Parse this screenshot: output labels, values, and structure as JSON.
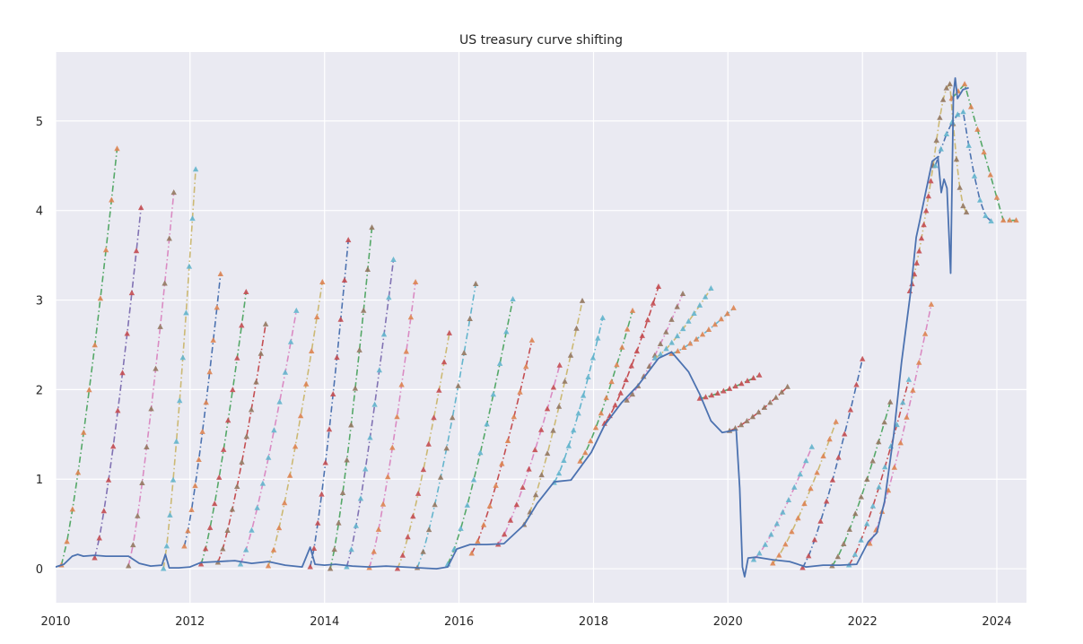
{
  "chart_data": {
    "type": "line",
    "title": "US treasury curve shifting",
    "xlabel": "",
    "ylabel": "",
    "x_axis": {
      "type": "date",
      "range": [
        "2010-01-01",
        "2024-06-10"
      ],
      "ticks": [
        "2010",
        "2012",
        "2014",
        "2016",
        "2018",
        "2020",
        "2022",
        "2024"
      ]
    },
    "y_axis": {
      "range": [
        -0.38,
        5.77
      ],
      "ticks": [
        0,
        1,
        2,
        3,
        4,
        5
      ]
    },
    "grid": true,
    "style": "seaborn-darkgrid",
    "short_rate_series": {
      "points": [
        [
          "2010-01-01",
          0.02
        ],
        [
          "2010-02-15",
          0.05
        ],
        [
          "2010-04-01",
          0.14
        ],
        [
          "2010-05-01",
          0.16
        ],
        [
          "2010-06-01",
          0.14
        ],
        [
          "2010-08-01",
          0.15
        ],
        [
          "2010-10-01",
          0.14
        ],
        [
          "2010-12-01",
          0.14
        ],
        [
          "2011-02-01",
          0.14
        ],
        [
          "2011-04-01",
          0.06
        ],
        [
          "2011-06-01",
          0.03
        ],
        [
          "2011-08-01",
          0.04
        ],
        [
          "2011-08-20",
          0.16
        ],
        [
          "2011-09-10",
          0.01
        ],
        [
          "2011-11-01",
          0.01
        ],
        [
          "2012-01-01",
          0.02
        ],
        [
          "2012-03-01",
          0.07
        ],
        [
          "2012-06-01",
          0.08
        ],
        [
          "2012-09-01",
          0.09
        ],
        [
          "2012-12-01",
          0.06
        ],
        [
          "2013-03-01",
          0.08
        ],
        [
          "2013-06-01",
          0.04
        ],
        [
          "2013-09-01",
          0.02
        ],
        [
          "2013-10-15",
          0.24
        ],
        [
          "2013-11-10",
          0.05
        ],
        [
          "2014-01-01",
          0.04
        ],
        [
          "2014-03-01",
          0.05
        ],
        [
          "2014-06-01",
          0.03
        ],
        [
          "2014-09-01",
          0.02
        ],
        [
          "2014-12-01",
          0.03
        ],
        [
          "2015-03-01",
          0.02
        ],
        [
          "2015-06-01",
          0.01
        ],
        [
          "2015-09-01",
          0.0
        ],
        [
          "2015-11-01",
          0.02
        ],
        [
          "2015-12-20",
          0.22
        ],
        [
          "2016-03-01",
          0.27
        ],
        [
          "2016-06-01",
          0.27
        ],
        [
          "2016-09-01",
          0.28
        ],
        [
          "2016-12-20",
          0.49
        ],
        [
          "2017-03-01",
          0.73
        ],
        [
          "2017-06-01",
          0.97
        ],
        [
          "2017-09-01",
          0.99
        ],
        [
          "2017-12-20",
          1.3
        ],
        [
          "2018-03-01",
          1.6
        ],
        [
          "2018-06-01",
          1.85
        ],
        [
          "2018-09-01",
          2.05
        ],
        [
          "2018-12-20",
          2.35
        ],
        [
          "2019-03-01",
          2.42
        ],
        [
          "2019-06-01",
          2.2
        ],
        [
          "2019-08-01",
          1.95
        ],
        [
          "2019-10-01",
          1.65
        ],
        [
          "2019-12-01",
          1.52
        ],
        [
          "2020-02-15",
          1.55
        ],
        [
          "2020-03-05",
          0.9
        ],
        [
          "2020-03-20",
          0.02
        ],
        [
          "2020-04-01",
          -0.09
        ],
        [
          "2020-04-20",
          0.12
        ],
        [
          "2020-06-01",
          0.13
        ],
        [
          "2020-09-01",
          0.1
        ],
        [
          "2020-12-01",
          0.08
        ],
        [
          "2021-03-01",
          0.02
        ],
        [
          "2021-06-01",
          0.04
        ],
        [
          "2021-09-01",
          0.04
        ],
        [
          "2021-12-01",
          0.05
        ],
        [
          "2022-02-01",
          0.3
        ],
        [
          "2022-03-20",
          0.4
        ],
        [
          "2022-05-01",
          0.75
        ],
        [
          "2022-06-20",
          1.5
        ],
        [
          "2022-08-01",
          2.3
        ],
        [
          "2022-09-20",
          3.1
        ],
        [
          "2022-10-20",
          3.7
        ],
        [
          "2022-11-10",
          3.9
        ],
        [
          "2022-12-10",
          4.2
        ],
        [
          "2023-01-15",
          4.55
        ],
        [
          "2023-02-15",
          4.6
        ],
        [
          "2023-03-05",
          4.2
        ],
        [
          "2023-03-20",
          4.35
        ],
        [
          "2023-04-05",
          4.25
        ],
        [
          "2023-04-25",
          3.3
        ],
        [
          "2023-05-10",
          5.3
        ],
        [
          "2023-05-20",
          5.48
        ],
        [
          "2023-06-01",
          5.25
        ],
        [
          "2023-07-01",
          5.35
        ],
        [
          "2023-08-01",
          5.37
        ]
      ]
    },
    "forward_curves": [
      {
        "start": "2010-02-01",
        "end": "2010-12-01",
        "y0": 0.04,
        "y1": 4.69
      },
      {
        "start": "2010-08-01",
        "end": "2011-04-10",
        "y0": 0.12,
        "y1": 4.03
      },
      {
        "start": "2011-02-01",
        "end": "2011-10-05",
        "y0": 0.03,
        "y1": 4.2
      },
      {
        "start": "2011-08-10",
        "end": "2012-02-01",
        "y0": 0.0,
        "y1": 4.46
      },
      {
        "start": "2011-12-01",
        "end": "2012-06-15",
        "y0": 0.25,
        "y1": 3.29
      },
      {
        "start": "2012-03-01",
        "end": "2012-11-01",
        "y0": 0.05,
        "y1": 3.09
      },
      {
        "start": "2012-06-01",
        "end": "2013-02-15",
        "y0": 0.07,
        "y1": 2.73
      },
      {
        "start": "2012-10-01",
        "end": "2013-08-01",
        "y0": 0.05,
        "y1": 2.88
      },
      {
        "start": "2013-03-01",
        "end": "2013-12-20",
        "y0": 0.03,
        "y1": 3.2
      },
      {
        "start": "2013-10-15",
        "end": "2014-05-10",
        "y0": 0.02,
        "y1": 3.67
      },
      {
        "start": "2014-02-01",
        "end": "2014-09-15",
        "y0": 0.0,
        "y1": 3.81
      },
      {
        "start": "2014-05-01",
        "end": "2015-01-10",
        "y0": 0.02,
        "y1": 3.45
      },
      {
        "start": "2014-09-01",
        "end": "2015-05-10",
        "y0": 0.01,
        "y1": 3.2
      },
      {
        "start": "2015-02-01",
        "end": "2015-11-10",
        "y0": 0.0,
        "y1": 2.63
      },
      {
        "start": "2015-05-20",
        "end": "2016-04-01",
        "y0": 0.01,
        "y1": 3.18
      },
      {
        "start": "2015-11-01",
        "end": "2016-10-20",
        "y0": 0.05,
        "y1": 3.01
      },
      {
        "start": "2016-03-10",
        "end": "2017-02-01",
        "y0": 0.17,
        "y1": 2.55
      },
      {
        "start": "2016-08-01",
        "end": "2017-07-01",
        "y0": 0.27,
        "y1": 2.27
      },
      {
        "start": "2016-12-20",
        "end": "2017-11-01",
        "y0": 0.49,
        "y1": 2.99
      },
      {
        "start": "2017-06-01",
        "end": "2018-02-20",
        "y0": 0.96,
        "y1": 2.8
      },
      {
        "start": "2017-10-20",
        "end": "2018-08-01",
        "y0": 1.2,
        "y1": 2.88
      },
      {
        "start": "2018-03-01",
        "end": "2018-12-20",
        "y0": 1.62,
        "y1": 3.15
      },
      {
        "start": "2018-07-01",
        "end": "2019-05-01",
        "y0": 1.88,
        "y1": 3.07
      },
      {
        "start": "2018-12-01",
        "end": "2019-10-01",
        "y0": 2.35,
        "y1": 3.13
      },
      {
        "start": "2019-03-01",
        "end": "2020-02-01",
        "y0": 2.4,
        "y1": 2.91
      },
      {
        "start": "2019-08-01",
        "end": "2020-06-20",
        "y0": 1.9,
        "y1": 2.16
      },
      {
        "start": "2020-01-10",
        "end": "2020-11-20",
        "y0": 1.54,
        "y1": 2.03
      },
      {
        "start": "2020-05-20",
        "end": "2021-04-01",
        "y0": 0.1,
        "y1": 1.36
      },
      {
        "start": "2020-09-01",
        "end": "2021-08-10",
        "y0": 0.06,
        "y1": 1.64
      },
      {
        "start": "2021-02-10",
        "end": "2022-01-01",
        "y0": 0.01,
        "y1": 2.34
      },
      {
        "start": "2021-07-20",
        "end": "2022-06-01",
        "y0": 0.03,
        "y1": 1.86
      },
      {
        "start": "2021-10-20",
        "end": "2022-09-10",
        "y0": 0.04,
        "y1": 2.11
      },
      {
        "start": "2022-02-10",
        "end": "2023-01-10",
        "y0": 0.28,
        "y1": 2.95
      },
      {
        "start": "2022-09-15",
        "end": "2023-01-20",
        "y0": 3.1,
        "y1": 4.5
      },
      {
        "start": "2023-01-20",
        "end": "2023-07-20",
        "y0": 4.5,
        "y1": 5.41,
        "y2": 3.98,
        "shape": "hump"
      },
      {
        "start": "2023-02-01",
        "end": "2023-12-01",
        "y0": 4.5,
        "y1": 5.1,
        "y2": 3.88,
        "shape": "hump"
      },
      {
        "start": "2023-05-01",
        "end": "2024-04-15",
        "y0": 5.25,
        "y1": 5.41,
        "y2": 3.89,
        "shape": "hump2"
      }
    ],
    "curve_styles": [
      "#55a868",
      "#8172b3",
      "#da8bc3",
      "#ccb974",
      "#4c72b0",
      "#55a868",
      "#c44e52",
      "#da8bc3",
      "#ccb974",
      "#4c72b0",
      "#55a868",
      "#8172b3",
      "#da8bc3",
      "#ccb974",
      "#64b5cd",
      "#55a868",
      "#c44e52",
      "#da8bc3",
      "#ccb974",
      "#64b5cd",
      "#55a868",
      "#c44e52",
      "#da8bc3",
      "#ccb974",
      "#64b5cd",
      "#55a868",
      "#c44e52",
      "#da8bc3",
      "#ccb974",
      "#4c72b0",
      "#55a868",
      "#c44e52",
      "#da8bc3",
      "#ccb974",
      "#ccb974",
      "#4c72b0",
      "#55a868"
    ],
    "marker_colors": [
      "#dd8452",
      "#c44e52",
      "#937860",
      "#64b5cd"
    ],
    "line_color": "#4c72b0",
    "background_color": "#eaeaf2"
  }
}
